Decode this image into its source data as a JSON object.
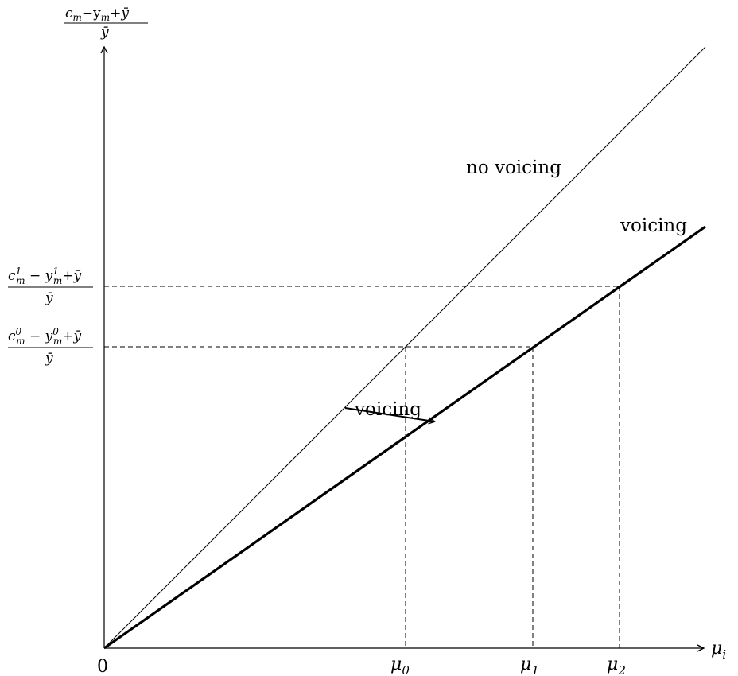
{
  "diagram": {
    "y_axis_label": {
      "numerator": "c",
      "numerator_sub_m": "m",
      "numerator_rest": "−y",
      "numerator_rest_sub": "m",
      "numerator_tail": "+ȳ",
      "denominator": "ȳ"
    },
    "x_axis_label": {
      "symbol": "μ",
      "sub": "i"
    },
    "origin_label": "0",
    "tick_labels_x": [
      {
        "symbol": "μ",
        "sub": "0"
      },
      {
        "symbol": "μ",
        "sub": "1"
      },
      {
        "symbol": "μ",
        "sub": "2"
      }
    ],
    "tick_labels_y": [
      {
        "c": "c",
        "c_sup": "1",
        "c_sub": "m",
        "y": "y",
        "y_sup": "1",
        "y_sub": "m",
        "tail": "+ȳ",
        "den": "ȳ"
      },
      {
        "c": "c",
        "c_sup": "0",
        "c_sub": "m",
        "y": "y",
        "y_sup": "0",
        "y_sub": "m",
        "tail": "+ȳ",
        "den": "ȳ"
      }
    ],
    "line_labels": {
      "no_voicing": "no voicing",
      "voicing": "voicing",
      "shift_arrow": "voicing"
    },
    "colors": {
      "line": "#000000",
      "background": "#ffffff"
    }
  }
}
